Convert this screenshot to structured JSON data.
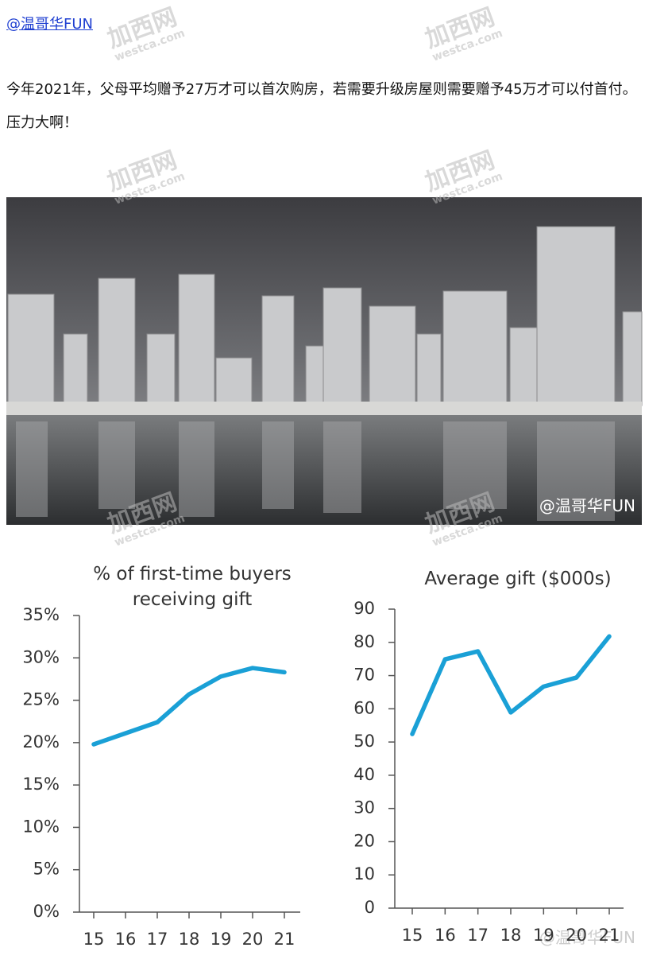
{
  "header": {
    "author": "@温哥华FUN"
  },
  "post": {
    "text": "今年2021年，父母平均赠予27万才可以首次购房，若需要升级房屋则需要赠予45万才可以付首付。压力大啊！"
  },
  "watermark": {
    "brand": "加西网",
    "site": "westca.com"
  },
  "photo": {
    "credit": "@温哥华FUN"
  },
  "chart_credit": "@温哥华FUN",
  "chart_data": [
    {
      "type": "line",
      "title": "% of first-time buyers receiving gift",
      "categories": [
        "15",
        "16",
        "17",
        "18",
        "19",
        "20",
        "21"
      ],
      "values": [
        19.8,
        21.1,
        22.4,
        25.7,
        27.8,
        28.8,
        28.3
      ],
      "color": "#1aa0d6",
      "ylim": [
        0,
        35
      ],
      "yticks": [
        {
          "value": 0,
          "label": "0%"
        },
        {
          "value": 5,
          "label": "5%"
        },
        {
          "value": 10,
          "label": "10%"
        },
        {
          "value": 15,
          "label": "15%"
        },
        {
          "value": 20,
          "label": "20%"
        },
        {
          "value": 25,
          "label": "25%"
        },
        {
          "value": 30,
          "label": "30%"
        },
        {
          "value": 35,
          "label": "35%"
        }
      ]
    },
    {
      "type": "line",
      "title": "Average gift ($000s)",
      "categories": [
        "15",
        "16",
        "17",
        "18",
        "19",
        "20",
        "21"
      ],
      "values": [
        52.4,
        74.9,
        77.3,
        58.9,
        66.7,
        69.4,
        81.8
      ],
      "color": "#1aa0d6",
      "ylim": [
        0,
        90
      ],
      "yticks": [
        0,
        10,
        20,
        30,
        40,
        50,
        60,
        70,
        80,
        90
      ]
    }
  ]
}
